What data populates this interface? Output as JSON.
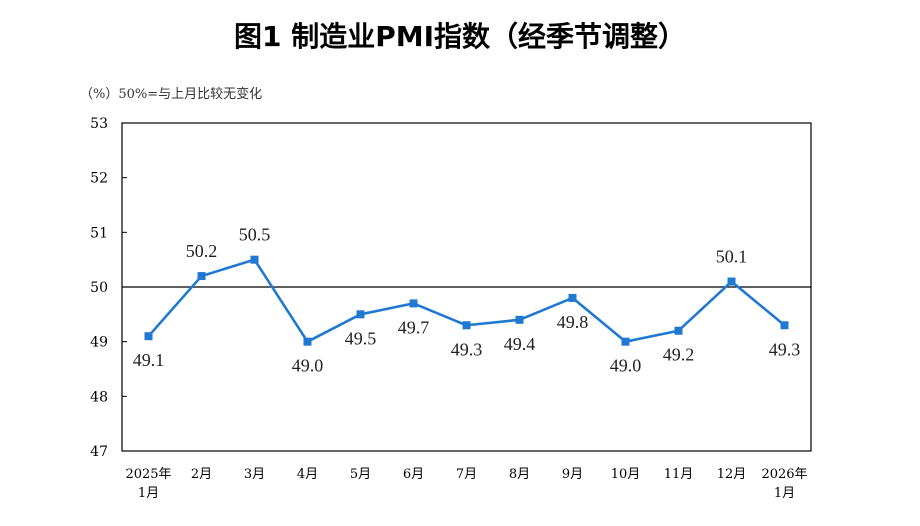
{
  "chart_data": {
    "type": "line",
    "title": "图1  制造业PMI指数（经季节调整）",
    "unit_note": "（%）50%=与上月比较无变化",
    "categories": [
      [
        "2025年",
        "1月"
      ],
      [
        "2月"
      ],
      [
        "3月"
      ],
      [
        "4月"
      ],
      [
        "5月"
      ],
      [
        "6月"
      ],
      [
        "7月"
      ],
      [
        "8月"
      ],
      [
        "9月"
      ],
      [
        "10月"
      ],
      [
        "11月"
      ],
      [
        "12月"
      ],
      [
        "2026年",
        "1月"
      ]
    ],
    "series": [
      {
        "values": [
          49.1,
          50.2,
          50.5,
          49.0,
          49.5,
          49.7,
          49.3,
          49.4,
          49.8,
          49.0,
          49.2,
          50.1,
          49.3
        ],
        "labels": [
          "49.1",
          "50.2",
          "50.5",
          "49.0",
          "49.5",
          "49.7",
          "49.3",
          "49.4",
          "49.8",
          "49.0",
          "49.2",
          "50.1",
          "49.3"
        ],
        "label_position": [
          "below",
          "above",
          "above",
          "below",
          "below",
          "below",
          "below",
          "below",
          "below",
          "below",
          "below",
          "above",
          "below"
        ],
        "color": "#1f78d1"
      }
    ],
    "ylim": [
      47,
      53
    ],
    "yticks": [
      "47",
      "48",
      "49",
      "50",
      "51",
      "52",
      "53"
    ],
    "reference_line": 50,
    "grid": false,
    "legend": "none"
  }
}
